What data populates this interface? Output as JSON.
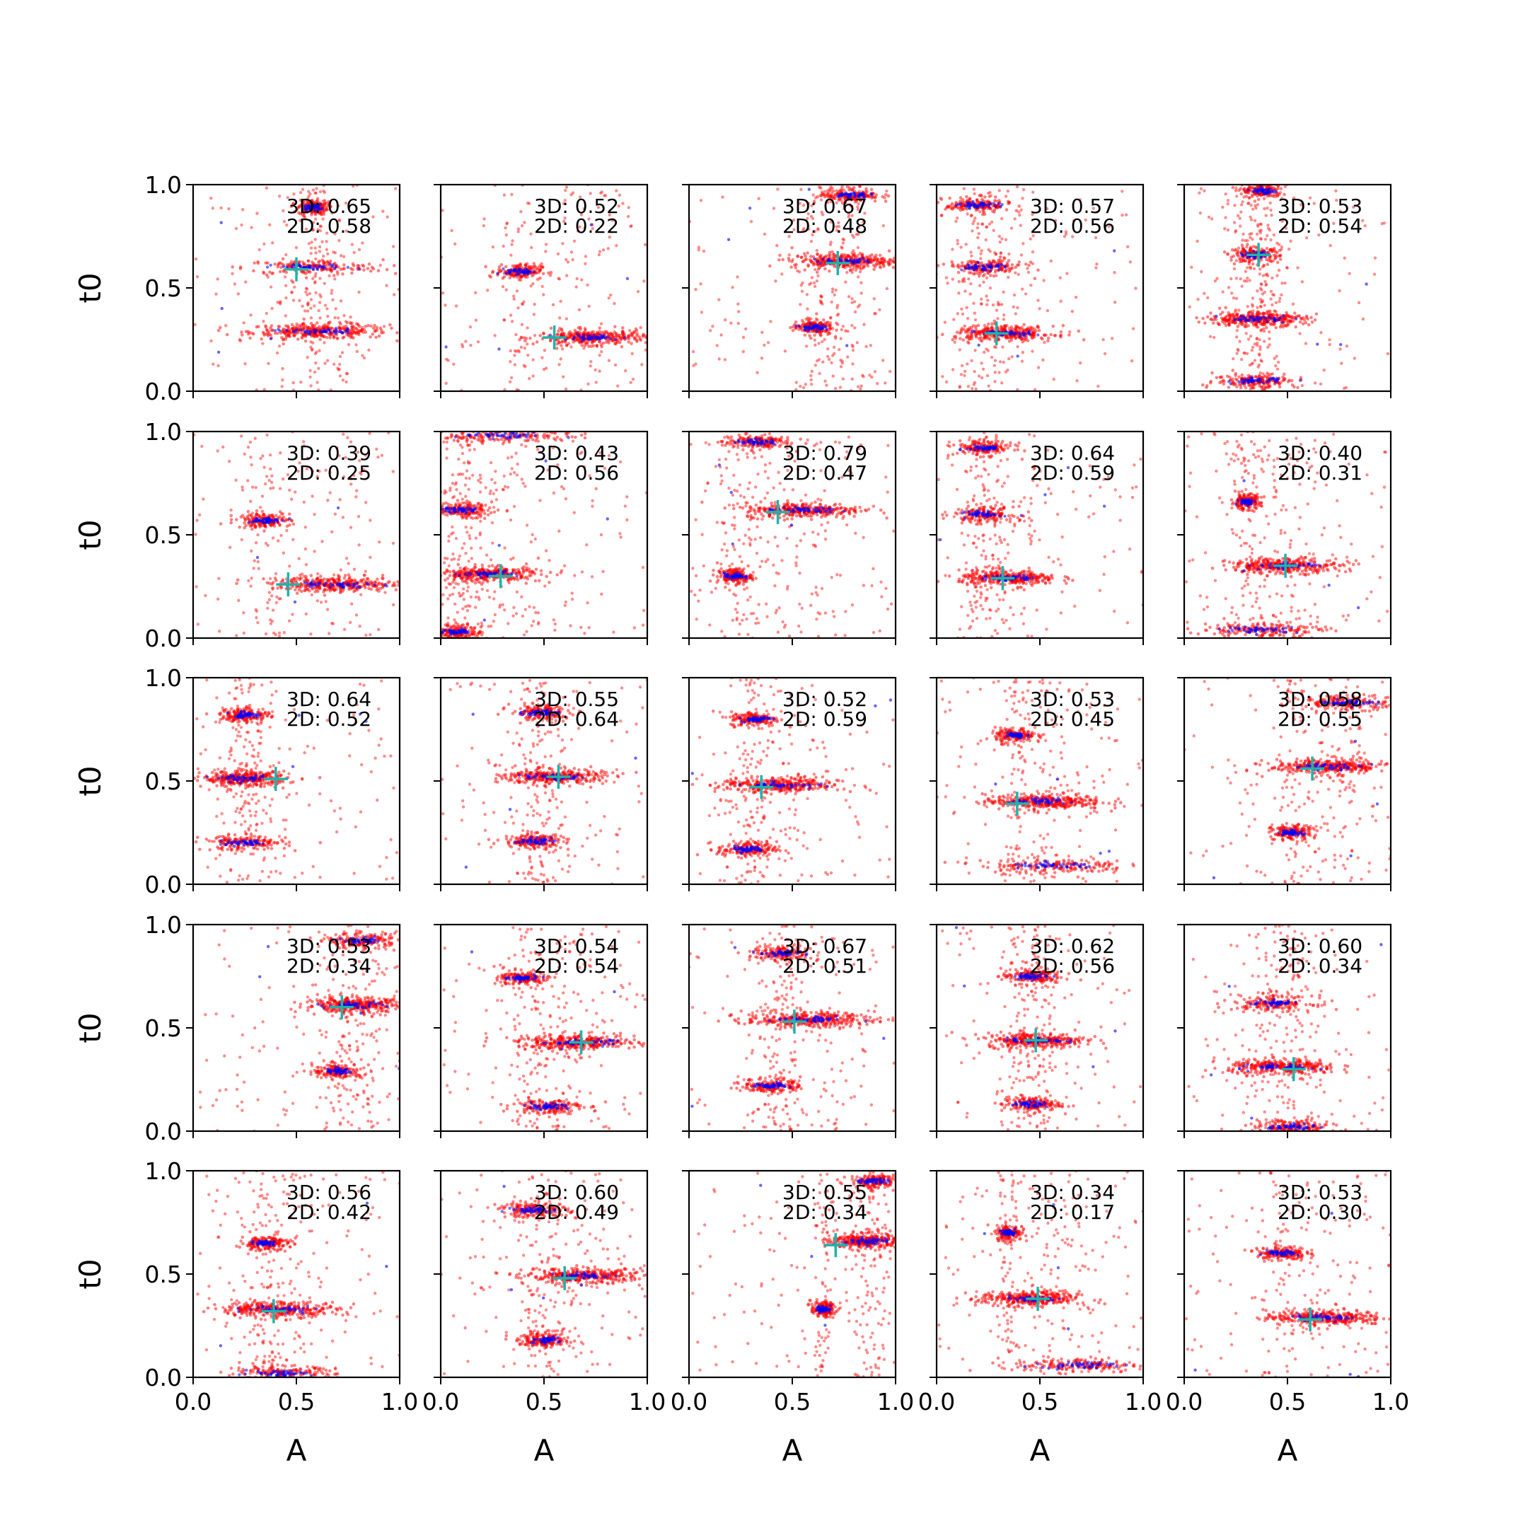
{
  "colors": {
    "red_points": "#ff0000",
    "blue_points": "#0000ff",
    "marker": "#20b2aa",
    "axes": "#000000"
  },
  "chart_data": {
    "type": "scatter",
    "layout": {
      "rows": 5,
      "cols": 5
    },
    "xlabel": "A",
    "ylabel": "t0",
    "xlim": [
      0,
      1
    ],
    "ylim": [
      0,
      1
    ],
    "xticks": [
      "0.0",
      "0.5",
      "1.0"
    ],
    "yticks": [
      "0.0",
      "0.5",
      "1.0"
    ],
    "grid": false,
    "panels": [
      {
        "score3d": "3D: 0.65",
        "score2d": "2D: 0.58",
        "marker": [
          0.5,
          0.59
        ],
        "bands": [
          [
            0.61,
            0.29,
            0.28
          ],
          [
            0.58,
            0.6,
            0.28
          ],
          [
            0.58,
            0.89,
            0.06
          ]
        ]
      },
      {
        "score3d": "3D: 0.52",
        "score2d": "2D: 0.22",
        "marker": [
          0.55,
          0.26
        ],
        "bands": [
          [
            0.73,
            0.26,
            0.22
          ],
          [
            0.38,
            0.58,
            0.09
          ]
        ]
      },
      {
        "score3d": "3D: 0.67",
        "score2d": "2D: 0.48",
        "marker": [
          0.72,
          0.62
        ],
        "bands": [
          [
            0.76,
            0.63,
            0.22
          ],
          [
            0.6,
            0.31,
            0.08
          ],
          [
            0.78,
            0.95,
            0.12
          ]
        ]
      },
      {
        "score3d": "3D: 0.57",
        "score2d": "2D: 0.56",
        "marker": [
          0.29,
          0.28
        ],
        "bands": [
          [
            0.33,
            0.28,
            0.2
          ],
          [
            0.23,
            0.6,
            0.16
          ],
          [
            0.2,
            0.9,
            0.13
          ]
        ]
      },
      {
        "score3d": "3D: 0.53",
        "score2d": "2D: 0.54",
        "marker": [
          0.36,
          0.66
        ],
        "bands": [
          [
            0.35,
            0.35,
            0.2
          ],
          [
            0.34,
            0.66,
            0.1
          ],
          [
            0.35,
            0.05,
            0.17
          ],
          [
            0.38,
            0.97,
            0.08
          ]
        ]
      },
      {
        "score3d": "3D: 0.39",
        "score2d": "2D: 0.25",
        "marker": [
          0.46,
          0.26
        ],
        "bands": [
          [
            0.69,
            0.26,
            0.26
          ],
          [
            0.34,
            0.57,
            0.11
          ]
        ]
      },
      {
        "score3d": "3D: 0.43",
        "score2d": "2D: 0.56",
        "marker": [
          0.29,
          0.3
        ],
        "bands": [
          [
            0.22,
            0.31,
            0.22
          ],
          [
            0.1,
            0.62,
            0.12
          ],
          [
            0.3,
            0.98,
            0.3
          ],
          [
            0.08,
            0.03,
            0.1
          ]
        ]
      },
      {
        "score3d": "3D: 0.79",
        "score2d": "2D: 0.47",
        "marker": [
          0.43,
          0.61
        ],
        "bands": [
          [
            0.55,
            0.62,
            0.24
          ],
          [
            0.22,
            0.3,
            0.07
          ],
          [
            0.33,
            0.95,
            0.14
          ]
        ]
      },
      {
        "score3d": "3D: 0.64",
        "score2d": "2D: 0.59",
        "marker": [
          0.32,
          0.29
        ],
        "bands": [
          [
            0.35,
            0.29,
            0.2
          ],
          [
            0.23,
            0.6,
            0.12
          ],
          [
            0.23,
            0.92,
            0.12
          ]
        ]
      },
      {
        "score3d": "3D: 0.40",
        "score2d": "2D: 0.31",
        "marker": [
          0.49,
          0.35
        ],
        "bands": [
          [
            0.49,
            0.35,
            0.23
          ],
          [
            0.38,
            0.04,
            0.25
          ],
          [
            0.3,
            0.66,
            0.06
          ]
        ]
      },
      {
        "score3d": "3D: 0.64",
        "score2d": "2D: 0.52",
        "marker": [
          0.4,
          0.51
        ],
        "bands": [
          [
            0.25,
            0.51,
            0.17
          ],
          [
            0.25,
            0.2,
            0.17
          ],
          [
            0.25,
            0.82,
            0.1
          ]
        ]
      },
      {
        "score3d": "3D: 0.55",
        "score2d": "2D: 0.64",
        "marker": [
          0.57,
          0.52
        ],
        "bands": [
          [
            0.55,
            0.52,
            0.2
          ],
          [
            0.45,
            0.21,
            0.12
          ],
          [
            0.48,
            0.83,
            0.12
          ]
        ]
      },
      {
        "score3d": "3D: 0.52",
        "score2d": "2D: 0.59",
        "marker": [
          0.35,
          0.47
        ],
        "bands": [
          [
            0.44,
            0.48,
            0.24
          ],
          [
            0.28,
            0.17,
            0.12
          ],
          [
            0.32,
            0.8,
            0.1
          ]
        ]
      },
      {
        "score3d": "3D: 0.53",
        "score2d": "2D: 0.45",
        "marker": [
          0.39,
          0.39
        ],
        "bands": [
          [
            0.52,
            0.4,
            0.24
          ],
          [
            0.57,
            0.09,
            0.3
          ],
          [
            0.38,
            0.72,
            0.08
          ]
        ]
      },
      {
        "score3d": "3D: 0.58",
        "score2d": "2D: 0.55",
        "marker": [
          0.62,
          0.56
        ],
        "bands": [
          [
            0.7,
            0.57,
            0.24
          ],
          [
            0.52,
            0.25,
            0.08
          ],
          [
            0.8,
            0.88,
            0.2
          ]
        ]
      },
      {
        "score3d": "3D: 0.53",
        "score2d": "2D: 0.34",
        "marker": [
          0.72,
          0.6
        ],
        "bands": [
          [
            0.78,
            0.61,
            0.2
          ],
          [
            0.7,
            0.29,
            0.1
          ],
          [
            0.82,
            0.92,
            0.14
          ]
        ]
      },
      {
        "score3d": "3D: 0.54",
        "score2d": "2D: 0.54",
        "marker": [
          0.68,
          0.43
        ],
        "bands": [
          [
            0.66,
            0.43,
            0.24
          ],
          [
            0.52,
            0.12,
            0.14
          ],
          [
            0.4,
            0.74,
            0.1
          ]
        ]
      },
      {
        "score3d": "3D: 0.67",
        "score2d": "2D: 0.51",
        "marker": [
          0.51,
          0.53
        ],
        "bands": [
          [
            0.58,
            0.54,
            0.26
          ],
          [
            0.4,
            0.22,
            0.12
          ],
          [
            0.45,
            0.86,
            0.12
          ]
        ]
      },
      {
        "score3d": "3D: 0.62",
        "score2d": "2D: 0.56",
        "marker": [
          0.48,
          0.44
        ],
        "bands": [
          [
            0.48,
            0.44,
            0.2
          ],
          [
            0.46,
            0.13,
            0.12
          ],
          [
            0.46,
            0.75,
            0.12
          ]
        ]
      },
      {
        "score3d": "3D: 0.60",
        "score2d": "2D: 0.34",
        "marker": [
          0.53,
          0.3
        ],
        "bands": [
          [
            0.48,
            0.31,
            0.22
          ],
          [
            0.43,
            0.62,
            0.16
          ],
          [
            0.52,
            0.02,
            0.16
          ]
        ]
      },
      {
        "score3d": "3D: 0.56",
        "score2d": "2D: 0.42",
        "marker": [
          0.39,
          0.32
        ],
        "bands": [
          [
            0.42,
            0.33,
            0.24
          ],
          [
            0.35,
            0.65,
            0.1
          ],
          [
            0.42,
            0.02,
            0.22
          ]
        ]
      },
      {
        "score3d": "3D: 0.60",
        "score2d": "2D: 0.49",
        "marker": [
          0.6,
          0.48
        ],
        "bands": [
          [
            0.7,
            0.49,
            0.24
          ],
          [
            0.45,
            0.81,
            0.14
          ],
          [
            0.5,
            0.18,
            0.1
          ]
        ]
      },
      {
        "score3d": "3D: 0.55",
        "score2d": "2D: 0.34",
        "marker": [
          0.71,
          0.64
        ],
        "bands": [
          [
            0.85,
            0.66,
            0.14
          ],
          [
            0.9,
            0.95,
            0.1
          ],
          [
            0.65,
            0.33,
            0.05
          ]
        ]
      },
      {
        "score3d": "3D: 0.34",
        "score2d": "2D: 0.17",
        "marker": [
          0.49,
          0.38
        ],
        "bands": [
          [
            0.45,
            0.38,
            0.2
          ],
          [
            0.68,
            0.06,
            0.26
          ],
          [
            0.35,
            0.7,
            0.05
          ]
        ]
      },
      {
        "score3d": "3D: 0.53",
        "score2d": "2D: 0.30",
        "marker": [
          0.61,
          0.28
        ],
        "bands": [
          [
            0.68,
            0.29,
            0.24
          ],
          [
            0.47,
            0.6,
            0.1
          ]
        ]
      }
    ]
  }
}
